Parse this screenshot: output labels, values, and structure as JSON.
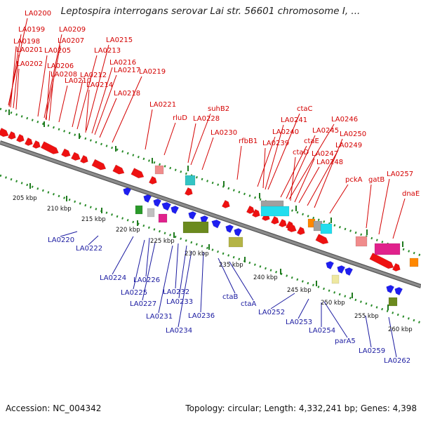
{
  "title": "Leptospira interrogans serovar Lai str. 56601 chromosome I, ...",
  "footer": {
    "accession": "Accession: NC_004342",
    "summary": "Topology: circular; Length: 4,332,241 bp; Genes: 4,398"
  },
  "colors": {
    "backbone": "#8c8c8c",
    "tick_dots": "#2a8c2a",
    "forward_label": "#d40000",
    "reverse_label": "#1a1aa0"
  },
  "kbp_labels": [
    "205 kbp",
    "210 kbp",
    "215 kbp",
    "220 kbp",
    "225 kbp",
    "230 kbp",
    "235 kbp",
    "240 kbp",
    "245 kbp",
    "250 kbp",
    "255 kbp",
    "260 kbp"
  ],
  "forward_labels": [
    "LA0200",
    "LA0199",
    "LA0198",
    "LA0201",
    "LA0202",
    "LA0209",
    "LA0207",
    "LA0205",
    "LA0206",
    "LA0208",
    "LA0210",
    "LA0212",
    "LA0213",
    "LA0215",
    "LA0216",
    "LA0217",
    "LA0214",
    "LA0218",
    "LA0219",
    "LA0221",
    "rluD",
    "suhB2",
    "LA0228",
    "LA0230",
    "rfbB1",
    "ctaC",
    "LA0241",
    "LA0240",
    "LA0239",
    "ctaE",
    "LA0245",
    "LA0246",
    "ctaD",
    "LA0247",
    "LA0248",
    "LA0249",
    "LA0250",
    "pckA",
    "gatB",
    "LA0257",
    "dnaE"
  ],
  "reverse_labels": [
    "LA0220",
    "LA0222",
    "LA0224",
    "LA0226",
    "LA0225",
    "LA0227",
    "LA0232",
    "LA0233",
    "LA0231",
    "LA0236",
    "LA0234",
    "ctaB",
    "ctaA",
    "LA0252",
    "LA0253",
    "LA0254",
    "parA5",
    "LA0259",
    "LA0262"
  ]
}
